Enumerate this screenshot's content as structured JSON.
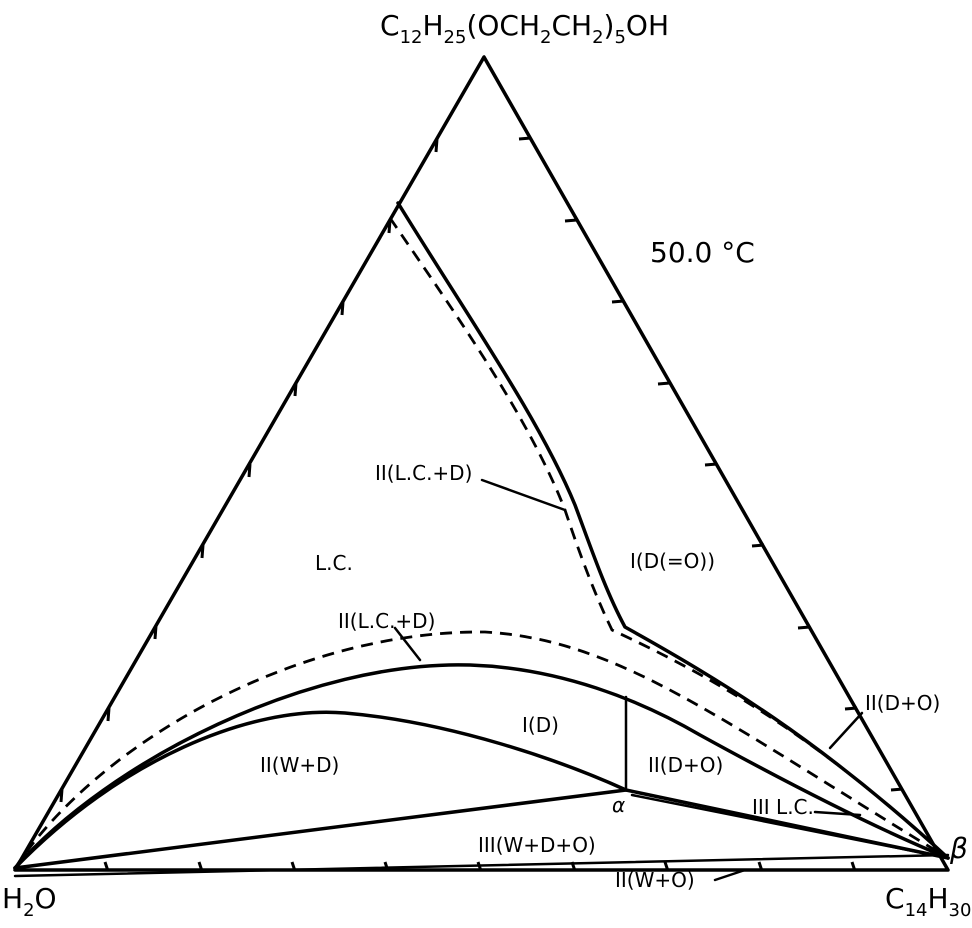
{
  "diagram": {
    "apex_label_main": "C",
    "apex_sub1": "12",
    "apex_mid1": "H",
    "apex_sub2": "25",
    "apex_mid2": "(OCH",
    "apex_sub3": "2",
    "apex_mid3": "CH",
    "apex_sub4": "2",
    "apex_mid4": ")",
    "apex_sub5": "5",
    "apex_mid5": "OH",
    "left_label_main": "H",
    "left_sub": "2",
    "left_tail": "O",
    "right_label_main": "C",
    "right_sub1": "14",
    "right_mid": "H",
    "right_sub2": "30",
    "temperature": "50.0 °C",
    "labels": {
      "lc": "L.C.",
      "region_lcd_upper": "II(L.C.+D)",
      "region_lcd_lower": "II(L.C.+D)",
      "region_d_o_top": "I(D(=O))",
      "region_d": "I(D)",
      "region_wd": "II(W+D)",
      "region_do": "II(D+O)",
      "region_do_right": "II(D+O)",
      "region_lc3": "III L.C.",
      "region_wdo": "III(W+D+O)",
      "region_wo": "II(W+O)",
      "point_alpha": "α",
      "point_beta": "β"
    }
  }
}
